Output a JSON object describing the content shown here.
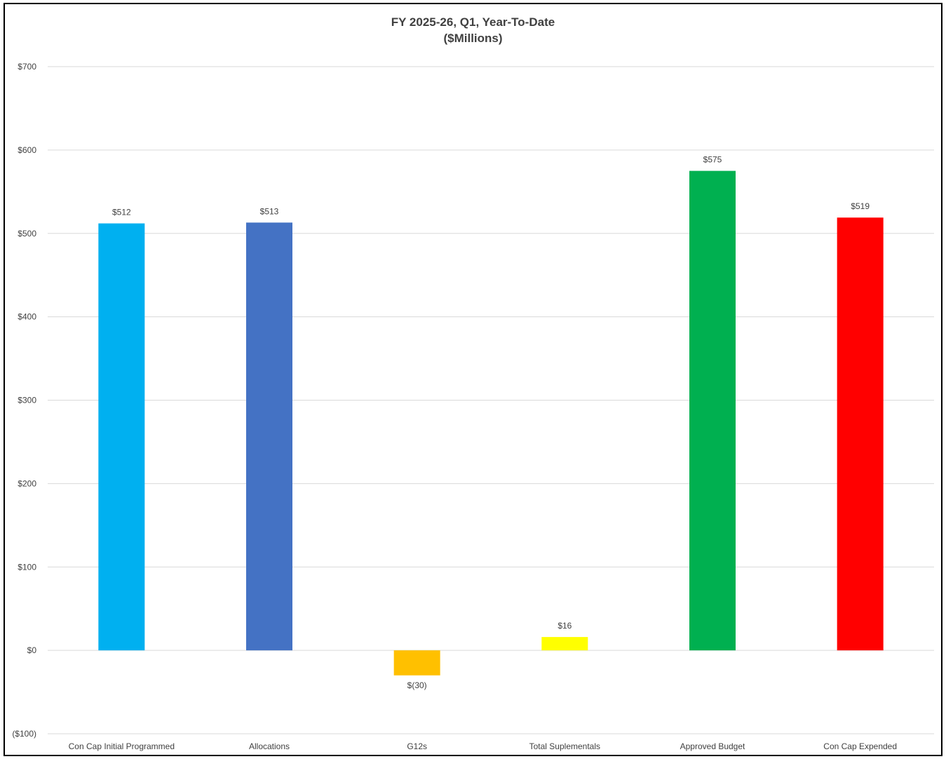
{
  "chart_data": {
    "type": "bar",
    "title": "FY 2025-26, Q1, Year-To-Date",
    "subtitle": "($Millions)",
    "categories": [
      "Con Cap Initial Programmed",
      "Allocations",
      "G12s",
      "Total Suplementals",
      "Approved Budget",
      "Con Cap Expended"
    ],
    "values": [
      512,
      513,
      -30,
      16,
      575,
      519
    ],
    "data_labels": [
      "$512",
      "$513",
      "$(30)",
      "$16",
      "$575",
      "$519"
    ],
    "colors": [
      "#00B0F0",
      "#4472C4",
      "#FFC000",
      "#FFFF00",
      "#00B050",
      "#FF0000"
    ],
    "ylim": [
      -100,
      700
    ],
    "yticks": [
      -100,
      0,
      100,
      200,
      300,
      400,
      500,
      600,
      700
    ],
    "ytick_labels": [
      "($100)",
      "$0",
      "$100",
      "$200",
      "$300",
      "$400",
      "$500",
      "$600",
      "$700"
    ],
    "xlabel": "",
    "ylabel": "",
    "grid": true,
    "legend": "none"
  }
}
